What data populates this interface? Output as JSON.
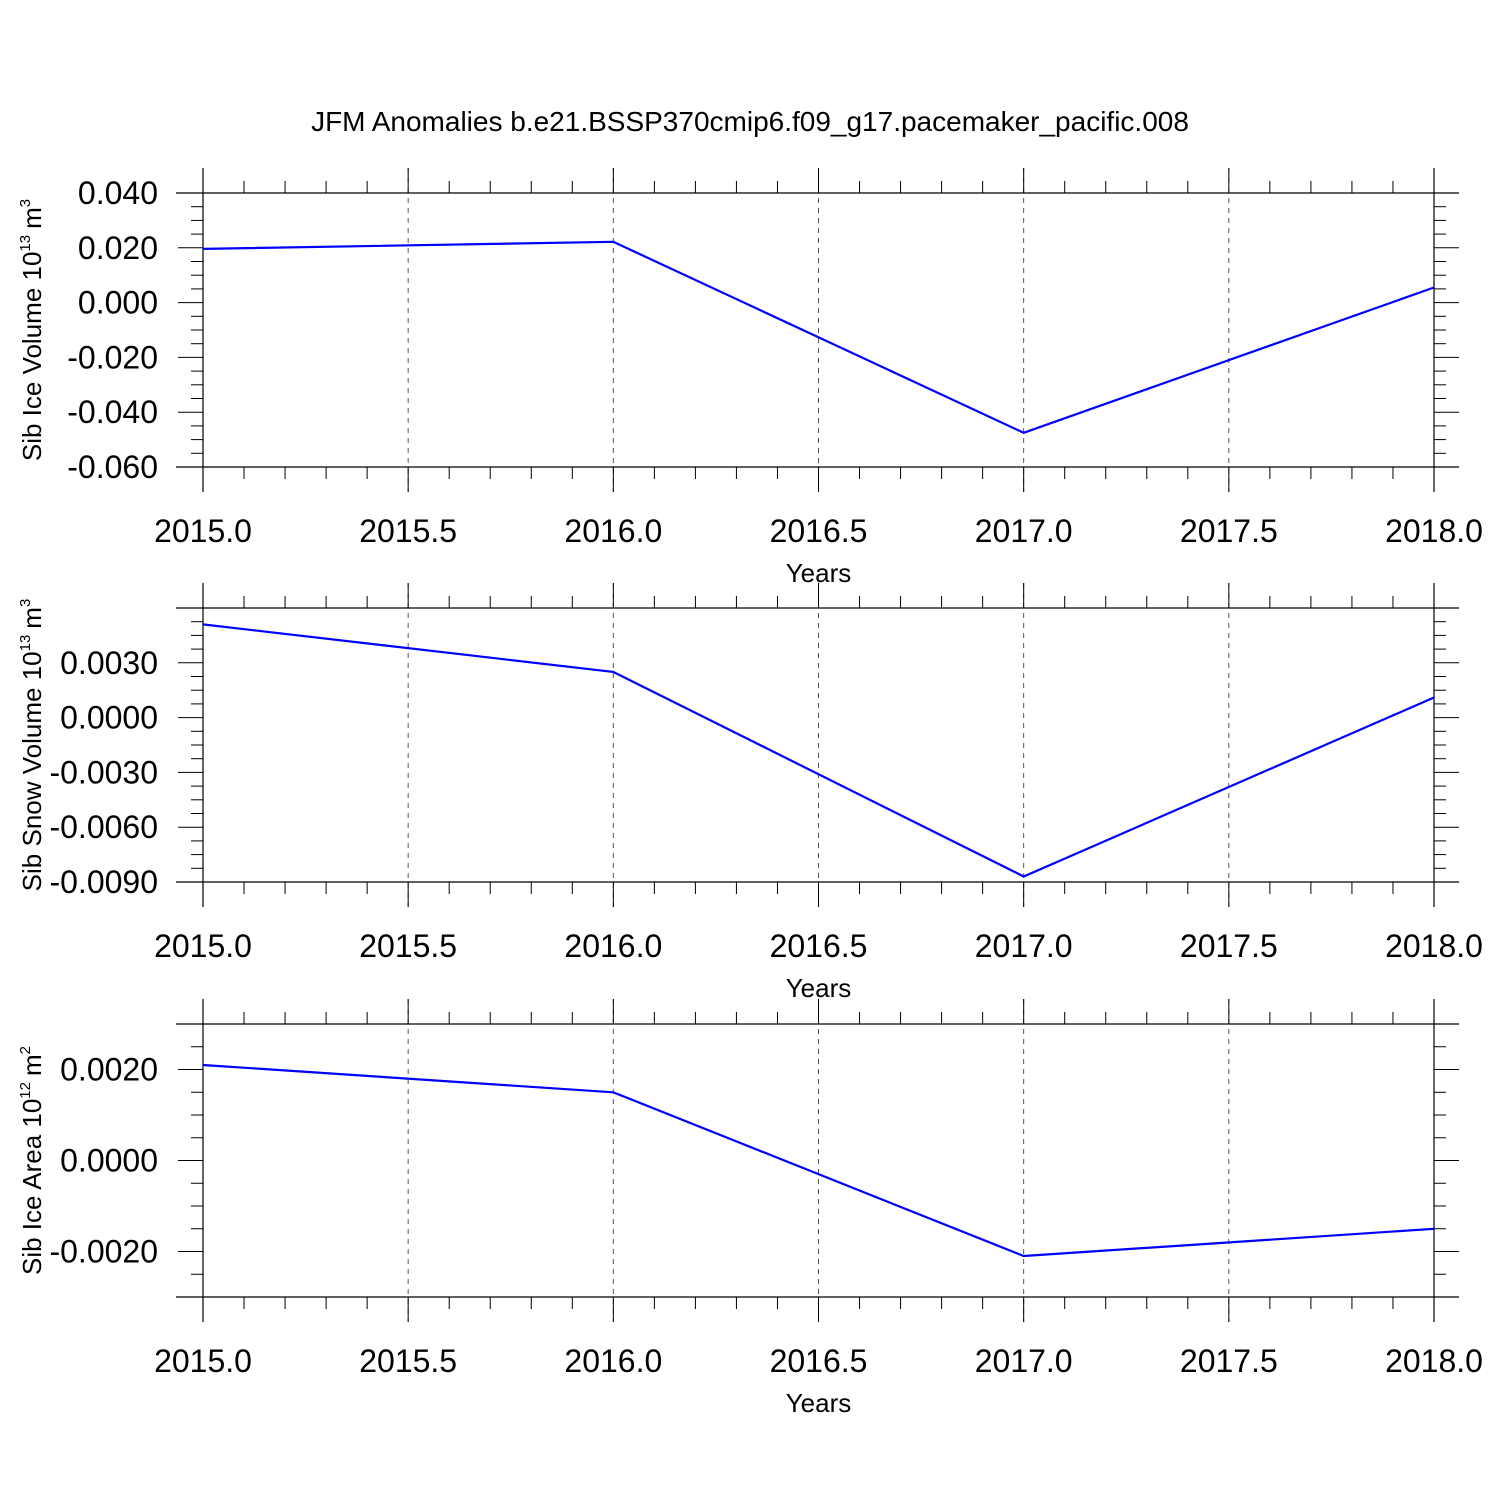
{
  "title": "JFM Anomalies b.e21.BSSP370cmip6.f09_g17.pacemaker_pacific.008",
  "colors": {
    "line": "#0000ff",
    "axes": "#000000",
    "grid": "#555555"
  },
  "chart_data": [
    {
      "type": "line",
      "ylabel": "Sib Ice Volume 10",
      "ylabel_exponent": "13",
      "ylabel_unit": "m",
      "ylabel_unit_exponent": "3",
      "xlabel": "Years",
      "x": [
        2015,
        2016,
        2017,
        2018
      ],
      "y": [
        0.0196,
        0.0222,
        -0.0475,
        0.0055
      ],
      "xlim": [
        2015.0,
        2018.0
      ],
      "ylim": [
        -0.06,
        0.04
      ],
      "xticks": [
        "2015.0",
        "2015.5",
        "2016.0",
        "2016.5",
        "2017.0",
        "2017.5",
        "2018.0"
      ],
      "yticks": [
        "0.040",
        "0.020",
        "0.000",
        "-0.020",
        "-0.040",
        "-0.060"
      ],
      "ytick_values": [
        0.04,
        0.02,
        0.0,
        -0.02,
        -0.04,
        -0.06
      ],
      "grid": "vertical dashed"
    },
    {
      "type": "line",
      "ylabel": "Sib Snow Volume 10",
      "ylabel_exponent": "13",
      "ylabel_unit": "m",
      "ylabel_unit_exponent": "3",
      "xlabel": "Years",
      "x": [
        2015,
        2016,
        2017,
        2018
      ],
      "y": [
        0.0051,
        0.0025,
        -0.0087,
        0.0011
      ],
      "xlim": [
        2015.0,
        2018.0
      ],
      "ylim": [
        -0.009,
        0.006
      ],
      "xticks": [
        "2015.0",
        "2015.5",
        "2016.0",
        "2016.5",
        "2017.0",
        "2017.5",
        "2018.0"
      ],
      "yticks": [
        "0.0030",
        "0.0000",
        "-0.0030",
        "-0.0060",
        "-0.0090"
      ],
      "ytick_values": [
        0.003,
        0.0,
        -0.003,
        -0.006,
        -0.009
      ],
      "grid": "vertical dashed"
    },
    {
      "type": "line",
      "ylabel": "Sib Ice Area 10",
      "ylabel_exponent": "12",
      "ylabel_unit": "m",
      "ylabel_unit_exponent": "2",
      "xlabel": "Years",
      "x": [
        2015,
        2016,
        2017,
        2018
      ],
      "y": [
        0.0021,
        0.0015,
        -0.0021,
        -0.0015
      ],
      "xlim": [
        2015.0,
        2018.0
      ],
      "ylim": [
        -0.003,
        0.003
      ],
      "xticks": [
        "2015.0",
        "2015.5",
        "2016.0",
        "2016.5",
        "2017.0",
        "2017.5",
        "2018.0"
      ],
      "yticks": [
        "0.0020",
        "0.0000",
        "-0.0020"
      ],
      "ytick_values": [
        0.002,
        0.0,
        -0.002
      ],
      "grid": "vertical dashed"
    }
  ]
}
